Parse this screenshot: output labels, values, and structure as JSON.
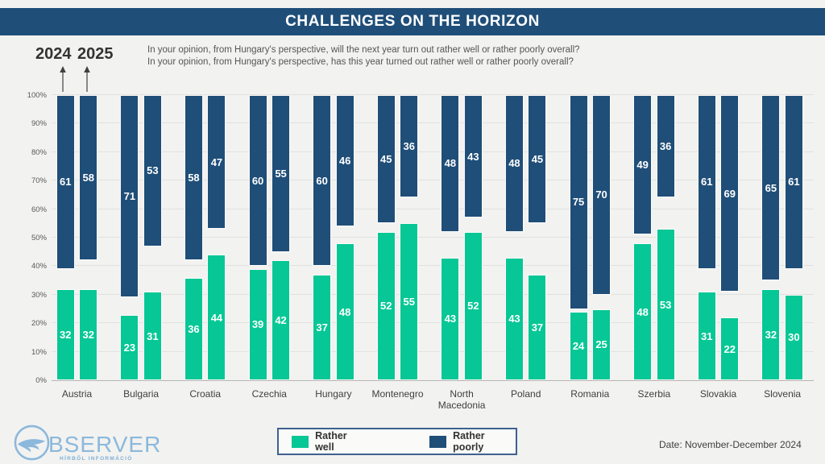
{
  "header": {
    "title": "CHALLENGES ON THE HORIZON"
  },
  "intro": {
    "year_left": "2024",
    "year_right": "2025",
    "question_line1": "In your opinion, from Hungary's perspective, will the next year turn out rather well or rather poorly overall?",
    "question_line2": "In your opinion, from Hungary's perspective, has this year turned out rather well or rather poorly overall?"
  },
  "chart_data": {
    "type": "bar",
    "title": "CHALLENGES ON THE HORIZON",
    "note": "Per country, two columns (2024 left, 2025 right). Green 'Rather well' bars rise from 0%; dark blue 'Rather poorly' bars hang down from 100%.",
    "categories": [
      "Austria",
      "Bulgaria",
      "Croatia",
      "Czechia",
      "Hungary",
      "Montenegro",
      "North Macedonia",
      "Poland",
      "Romania",
      "Szerbia",
      "Slovakia",
      "Slovenia"
    ],
    "years": [
      "2024",
      "2025"
    ],
    "series": [
      {
        "name": "Rather well",
        "color": "#06C795",
        "anchor": "bottom",
        "values": {
          "2024": [
            32,
            23,
            36,
            39,
            37,
            52,
            43,
            43,
            24,
            48,
            31,
            32
          ],
          "2025": [
            32,
            31,
            44,
            42,
            48,
            55,
            52,
            37,
            25,
            53,
            22,
            30
          ]
        }
      },
      {
        "name": "Rather poorly",
        "color": "#1F4E78",
        "anchor": "top",
        "values": {
          "2024": [
            61,
            71,
            58,
            60,
            60,
            45,
            48,
            48,
            75,
            49,
            61,
            65
          ],
          "2025": [
            58,
            53,
            47,
            55,
            46,
            36,
            43,
            45,
            70,
            36,
            69,
            61
          ]
        }
      }
    ],
    "ylim": [
      0,
      100
    ],
    "yticks": [
      "0%",
      "10%",
      "20%",
      "30%",
      "40%",
      "50%",
      "60%",
      "70%",
      "80%",
      "90%",
      "100%"
    ],
    "grid": true,
    "legend_position": "bottom"
  },
  "legend": {
    "well_label": "Rather well",
    "poorly_label": "Rather poorly"
  },
  "footer": {
    "date": "Date: November-December 2024"
  },
  "logo": {
    "brand_text": "BSERVER",
    "tagline": "HÍRBŐL INFORMÁCIÓ"
  },
  "colors": {
    "header_bg": "#1F4E78",
    "rather_well": "#06C795",
    "rather_poorly": "#1F4E78",
    "background": "#F2F2F0",
    "legend_border": "#3F608F",
    "logo_blue": "#8CB8DC"
  }
}
